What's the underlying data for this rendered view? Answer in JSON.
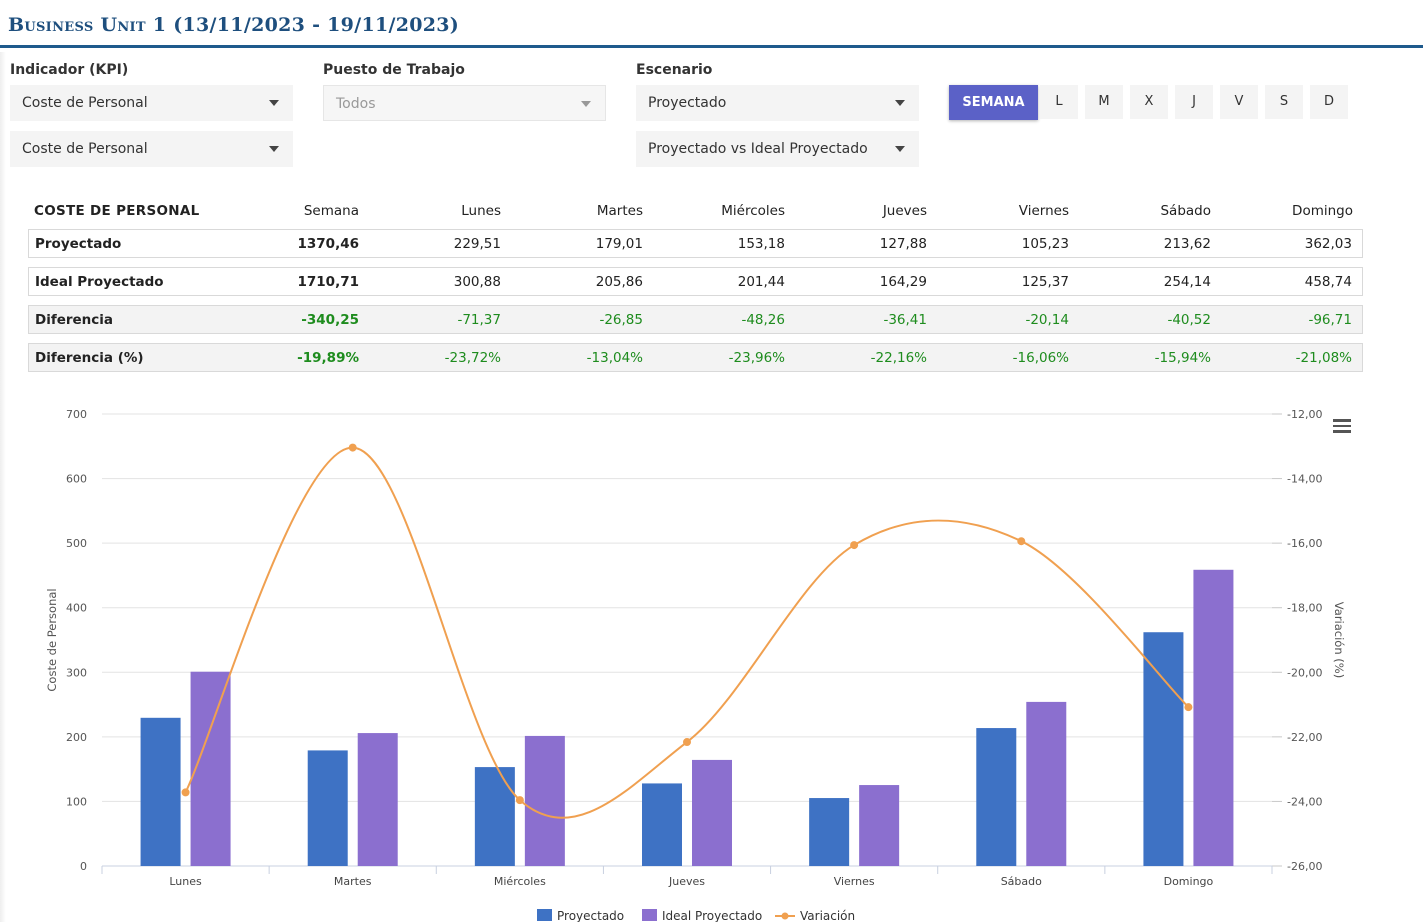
{
  "page": {
    "title": "Business Unit 1 (13/11/2023 - 19/11/2023)"
  },
  "filters": {
    "kpi_label": "Indicador (KPI)",
    "kpi_value": "Coste de Personal",
    "kpi_value_2": "Coste de Personal",
    "puesto_label": "Puesto de Trabajo",
    "puesto_value": "Todos",
    "escenario_label": "Escenario",
    "escenario_value": "Proyectado",
    "escenario_value_2": "Proyectado vs Ideal Proyectado"
  },
  "period_buttons": {
    "week": "SEMANA",
    "days": [
      "L",
      "M",
      "X",
      "J",
      "V",
      "S",
      "D"
    ]
  },
  "table": {
    "headers": [
      "COSTE DE PERSONAL",
      "Semana",
      "Lunes",
      "Martes",
      "Miércoles",
      "Jueves",
      "Viernes",
      "Sábado",
      "Domingo"
    ],
    "rows": [
      {
        "label": "Proyectado",
        "values": [
          "1370,46",
          "229,51",
          "179,01",
          "153,18",
          "127,88",
          "105,23",
          "213,62",
          "362,03"
        ]
      },
      {
        "label": "Ideal Proyectado",
        "values": [
          "1710,71",
          "300,88",
          "205,86",
          "201,44",
          "164,29",
          "125,37",
          "254,14",
          "458,74"
        ]
      },
      {
        "label": "Diferencia",
        "values": [
          "-340,25",
          "-71,37",
          "-26,85",
          "-48,26",
          "-36,41",
          "-20,14",
          "-40,52",
          "-96,71"
        ]
      },
      {
        "label": "Diferencia (%)",
        "values": [
          "-19,89%",
          "-23,72%",
          "-13,04%",
          "-23,96%",
          "-22,16%",
          "-16,06%",
          "-15,94%",
          "-21,08%"
        ]
      }
    ]
  },
  "colors": {
    "proyectado": "#3e72c4",
    "ideal": "#8b6fcf",
    "variacion": "#f0a050",
    "positive_green": "#1e8c1e",
    "accent": "#5b61c7"
  },
  "chart_data": {
    "type": "bar",
    "categories": [
      "Lunes",
      "Martes",
      "Miércoles",
      "Jueves",
      "Viernes",
      "Sábado",
      "Domingo"
    ],
    "series": [
      {
        "name": "Proyectado",
        "type": "bar",
        "axis": "left",
        "values": [
          229.51,
          179.01,
          153.18,
          127.88,
          105.23,
          213.62,
          362.03
        ]
      },
      {
        "name": "Ideal Proyectado",
        "type": "bar",
        "axis": "left",
        "values": [
          300.88,
          205.86,
          201.44,
          164.29,
          125.37,
          254.14,
          458.74
        ]
      },
      {
        "name": "Variación",
        "type": "spline",
        "axis": "right",
        "values": [
          -23.72,
          -13.04,
          -23.96,
          -22.16,
          -16.06,
          -15.94,
          -21.08
        ]
      }
    ],
    "ylabel": "Coste de Personal",
    "y2label": "Variación (%)",
    "ylim": [
      0,
      700
    ],
    "y_ticks": [
      "0",
      "100",
      "200",
      "300",
      "400",
      "500",
      "600",
      "700"
    ],
    "y2lim": [
      -26,
      -12
    ],
    "y2_ticks": [
      "-26,00",
      "-24,00",
      "-22,00",
      "-20,00",
      "-18,00",
      "-16,00",
      "-14,00",
      "-12,00"
    ],
    "grid": true,
    "legend": "bottom-center"
  }
}
